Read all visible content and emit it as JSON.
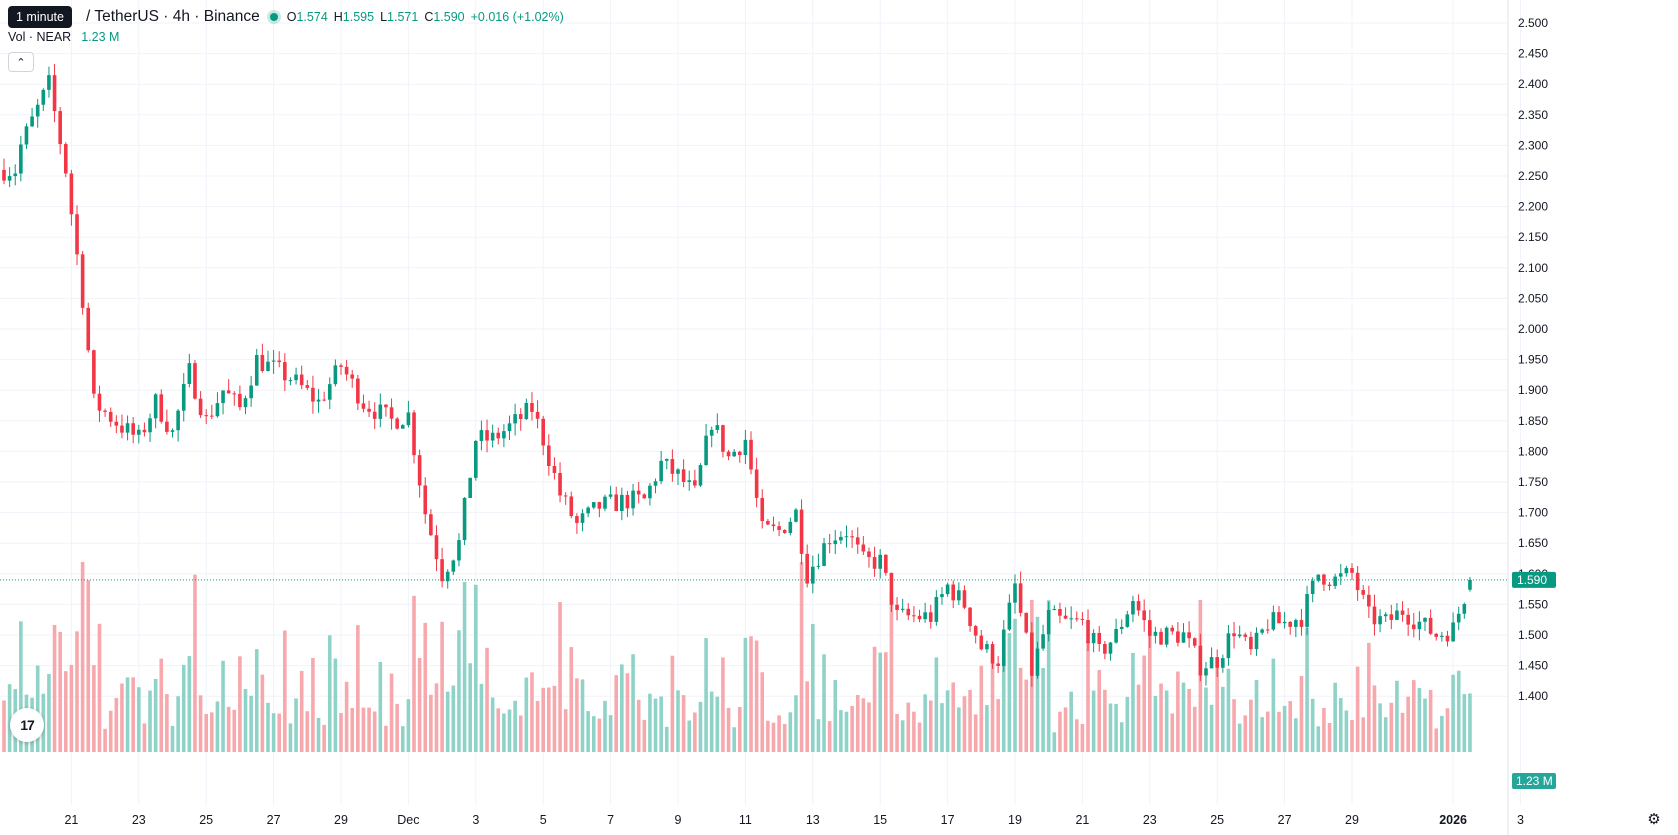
{
  "header": {
    "tooltip": "1 minute",
    "symbol_title": "/ TetherUS · 4h · Binance",
    "ohlc": {
      "o_label": "O",
      "o_value": "1.574",
      "h_label": "H",
      "h_value": "1.595",
      "l_label": "L",
      "l_value": "1.571",
      "c_label": "C",
      "c_value": "1.590",
      "change": "+0.016 (+1.02%)"
    },
    "volume_label": "Vol · NEAR",
    "volume_value": "1.23 M",
    "collapse_icon": "chevron-up-icon"
  },
  "price_badge": "1.590",
  "volume_badge": "1.23 M",
  "logo_text": "17",
  "colors": {
    "up": "#089981",
    "down": "#f23645",
    "vol_up": "#8fd3c8",
    "vol_down": "#f7a8ad",
    "grid": "#f0f3fa",
    "last_price_line": "#089981"
  },
  "chart_data": {
    "type": "candlestick",
    "interval": "4h",
    "yaxis": {
      "range": [
        1.375,
        2.5
      ],
      "ticks": [
        "2.500",
        "2.450",
        "2.400",
        "2.350",
        "2.300",
        "2.250",
        "2.200",
        "2.150",
        "2.100",
        "2.050",
        "2.000",
        "1.950",
        "1.900",
        "1.850",
        "1.800",
        "1.750",
        "1.700",
        "1.650",
        "1.600",
        "1.550",
        "1.500",
        "1.450",
        "1.400"
      ]
    },
    "xaxis": {
      "ticks": [
        "21",
        "23",
        "25",
        "27",
        "29",
        "Dec",
        "3",
        "5",
        "7",
        "9",
        "11",
        "13",
        "15",
        "17",
        "19",
        "21",
        "23",
        "25",
        "27",
        "29",
        "2026",
        "3"
      ],
      "bold_ticks": [
        "2026"
      ]
    },
    "grid": true,
    "last_price": 1.59,
    "volume_last": "1.23 M",
    "anchors": [
      {
        "label": "Nov 19 12:00",
        "price": 2.3
      },
      {
        "label": "Nov 20 08:00",
        "price": 2.4
      },
      {
        "label": "Nov 20 20:00",
        "price": 2.26
      },
      {
        "label": "Nov 21 08:00",
        "price": 2.05
      },
      {
        "label": "Nov 21 16:00",
        "price": 1.88
      },
      {
        "label": "Nov 22 12:00",
        "price": 1.84
      },
      {
        "label": "Nov 23 00:00",
        "price": 1.82
      },
      {
        "label": "Nov 23 12:00",
        "price": 1.88
      },
      {
        "label": "Nov 24 00:00",
        "price": 1.83
      },
      {
        "label": "Nov 24 12:00",
        "price": 1.93
      },
      {
        "label": "Nov 25 00:00",
        "price": 1.85
      },
      {
        "label": "Nov 25 12:00",
        "price": 1.9
      },
      {
        "label": "Nov 26 00:00",
        "price": 1.87
      },
      {
        "label": "Nov 26 12:00",
        "price": 1.95
      },
      {
        "label": "Nov 27 12:00",
        "price": 1.92
      },
      {
        "label": "Nov 28 08:00",
        "price": 1.88
      },
      {
        "label": "Nov 29 00:00",
        "price": 1.94
      },
      {
        "label": "Nov 29 16:00",
        "price": 1.88
      },
      {
        "label": "Nov 30 12:00",
        "price": 1.85
      },
      {
        "label": "Dec 1 00:00",
        "price": 1.86
      },
      {
        "label": "Dec 1 12:00",
        "price": 1.7
      },
      {
        "label": "Dec 2 00:00",
        "price": 1.6
      },
      {
        "label": "Dec 2 12:00",
        "price": 1.65
      },
      {
        "label": "Dec 3 00:00",
        "price": 1.82
      },
      {
        "label": "Dec 3 12:00",
        "price": 1.82
      },
      {
        "label": "Dec 4 00:00",
        "price": 1.84
      },
      {
        "label": "Dec 4 16:00",
        "price": 1.87
      },
      {
        "label": "Dec 5 00:00",
        "price": 1.82
      },
      {
        "label": "Dec 5 12:00",
        "price": 1.73
      },
      {
        "label": "Dec 6 00:00",
        "price": 1.68
      },
      {
        "label": "Dec 6 16:00",
        "price": 1.71
      },
      {
        "label": "Dec 7 12:00",
        "price": 1.72
      },
      {
        "label": "Dec 8 00:00",
        "price": 1.72
      },
      {
        "label": "Dec 8 12:00",
        "price": 1.78
      },
      {
        "label": "Dec 9 00:00",
        "price": 1.76
      },
      {
        "label": "Dec 9 12:00",
        "price": 1.73
      },
      {
        "label": "Dec 10 00:00",
        "price": 1.85
      },
      {
        "label": "Dec 10 12:00",
        "price": 1.79
      },
      {
        "label": "Dec 11 00:00",
        "price": 1.82
      },
      {
        "label": "Dec 11 12:00",
        "price": 1.67
      },
      {
        "label": "Dec 12 00:00",
        "price": 1.67
      },
      {
        "label": "Dec 12 12:00",
        "price": 1.7
      },
      {
        "label": "Dec 12 20:00",
        "price": 1.6
      },
      {
        "label": "Dec 13 12:00",
        "price": 1.66
      },
      {
        "label": "Dec 14 00:00",
        "price": 1.67
      },
      {
        "label": "Dec 14 12:00",
        "price": 1.62
      },
      {
        "label": "Dec 15 00:00",
        "price": 1.62
      },
      {
        "label": "Dec 15 12:00",
        "price": 1.53
      },
      {
        "label": "Dec 16 00:00",
        "price": 1.53
      },
      {
        "label": "Dec 16 12:00",
        "price": 1.53
      },
      {
        "label": "Dec 17 00:00",
        "price": 1.58
      },
      {
        "label": "Dec 17 12:00",
        "price": 1.55
      },
      {
        "label": "Dec 18 00:00",
        "price": 1.48
      },
      {
        "label": "Dec 18 12:00",
        "price": 1.46
      },
      {
        "label": "Dec 19 00:00",
        "price": 1.58
      },
      {
        "label": "Dec 19 12:00",
        "price": 1.44
      },
      {
        "label": "Dec 20 00:00",
        "price": 1.53
      },
      {
        "label": "Dec 20 12:00",
        "price": 1.52
      },
      {
        "label": "Dec 21 00:00",
        "price": 1.52
      },
      {
        "label": "Dec 21 12:00",
        "price": 1.47
      },
      {
        "label": "Dec 22 00:00",
        "price": 1.5
      },
      {
        "label": "Dec 22 12:00",
        "price": 1.56
      },
      {
        "label": "Dec 23 00:00",
        "price": 1.5
      },
      {
        "label": "Dec 23 12:00",
        "price": 1.5
      },
      {
        "label": "Dec 24 00:00",
        "price": 1.5
      },
      {
        "label": "Dec 24 12:00",
        "price": 1.45
      },
      {
        "label": "Dec 25 00:00",
        "price": 1.46
      },
      {
        "label": "Dec 25 12:00",
        "price": 1.51
      },
      {
        "label": "Dec 26 00:00",
        "price": 1.47
      },
      {
        "label": "Dec 26 12:00",
        "price": 1.52
      },
      {
        "label": "Dec 27 00:00",
        "price": 1.52
      },
      {
        "label": "Dec 27 12:00",
        "price": 1.53
      },
      {
        "label": "Dec 28 00:00",
        "price": 1.6
      },
      {
        "label": "Dec 28 12:00",
        "price": 1.59
      },
      {
        "label": "Dec 29 00:00",
        "price": 1.6
      },
      {
        "label": "Dec 29 12:00",
        "price": 1.53
      },
      {
        "label": "Dec 30 00:00",
        "price": 1.52
      },
      {
        "label": "Dec 30 12:00",
        "price": 1.54
      },
      {
        "label": "Dec 31 00:00",
        "price": 1.52
      },
      {
        "label": "Dec 31 12:00",
        "price": 1.5
      },
      {
        "label": "Jan 1 00:00",
        "price": 1.51
      },
      {
        "label": "Jan 1 12:00",
        "price": 1.59
      }
    ]
  }
}
